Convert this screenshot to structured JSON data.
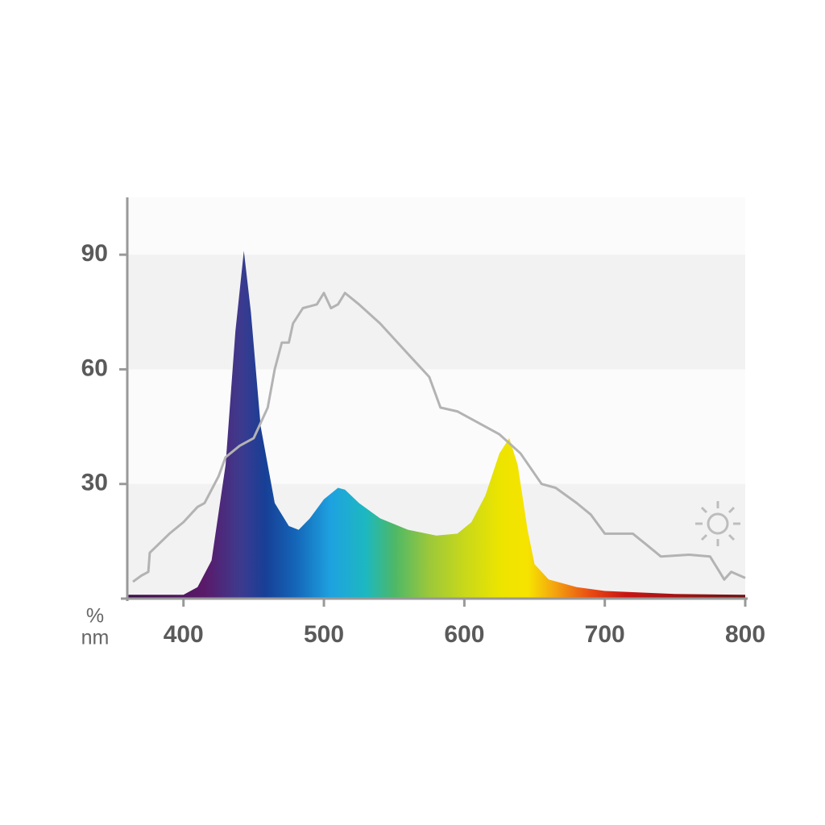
{
  "chart_data": {
    "type": "area",
    "x_label": "nm",
    "y_label": "%",
    "xlim": [
      360,
      800
    ],
    "ylim": [
      0,
      105
    ],
    "xticks": [
      400,
      500,
      600,
      700,
      800
    ],
    "yticks": [
      30,
      60,
      90
    ],
    "series": [
      {
        "type": "area",
        "x": [
          360,
          400,
          410,
          420,
          430,
          437,
          443,
          448,
          455,
          465,
          475,
          482,
          490,
          500,
          510,
          515,
          525,
          540,
          560,
          580,
          595,
          605,
          615,
          625,
          632,
          638,
          645,
          650,
          660,
          680,
          700,
          750,
          800
        ],
        "values": [
          1,
          1,
          3,
          10,
          35,
          70,
          91,
          75,
          45,
          25,
          19,
          18,
          21,
          26,
          29,
          28.5,
          25,
          21,
          18,
          16.5,
          17,
          20,
          27,
          38,
          42,
          35,
          18,
          9,
          5,
          3,
          2,
          1.2,
          1
        ]
      },
      {
        "type": "line",
        "color": "#b3b3b3",
        "x": [
          364,
          370,
          375,
          376,
          390,
          400,
          410,
          415,
          425,
          430,
          440,
          450,
          460,
          465,
          470,
          475,
          478,
          485,
          495,
          500,
          505,
          510,
          515,
          525,
          540,
          560,
          575,
          580,
          583,
          595,
          610,
          625,
          640,
          655,
          665,
          680,
          690,
          700,
          720,
          730,
          740,
          760,
          775,
          785,
          790,
          800
        ],
        "values": [
          4.4,
          6,
          7,
          12,
          17,
          20,
          24,
          25,
          32,
          37,
          40,
          42,
          50,
          60,
          67,
          67,
          72,
          76,
          77,
          80,
          76,
          77,
          80,
          77,
          72,
          64,
          58,
          53,
          50,
          49,
          46,
          43,
          38,
          30,
          29,
          25,
          22,
          17,
          17,
          14,
          11,
          11.5,
          11,
          5,
          7,
          5.4
        ]
      }
    ]
  }
}
